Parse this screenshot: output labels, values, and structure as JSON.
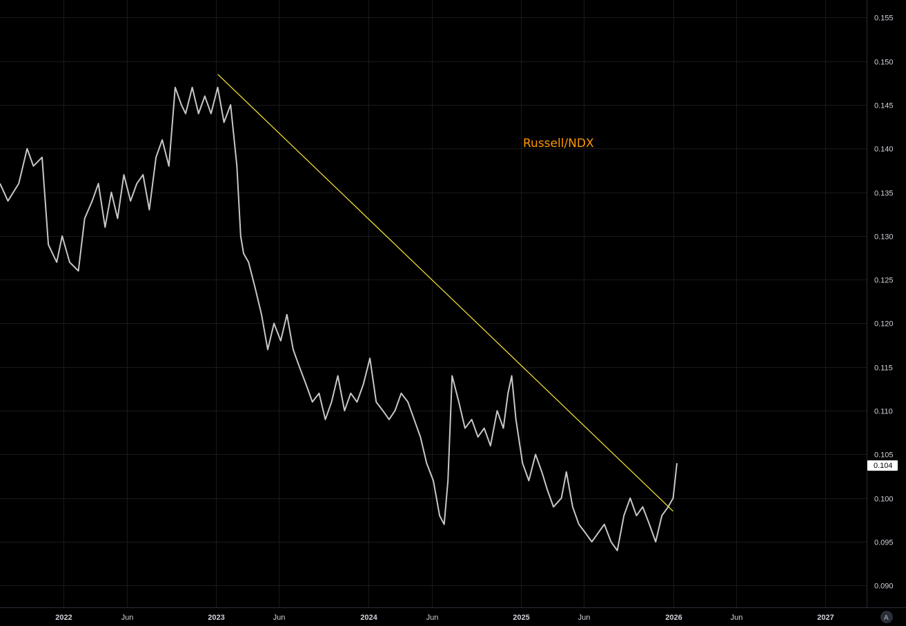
{
  "chart_data": {
    "type": "line",
    "annotation": "Russell/NDX",
    "current_value_label": "0.104",
    "y_ticks": [
      "0.090",
      "0.095",
      "0.100",
      "0.105",
      "0.110",
      "0.115",
      "0.120",
      "0.125",
      "0.130",
      "0.135",
      "0.140",
      "0.145",
      "0.150",
      "0.155"
    ],
    "ylim": [
      0.0875,
      0.157
    ],
    "x_ticks": [
      {
        "label": "2022",
        "date": "2022-01-01",
        "year": true
      },
      {
        "label": "Jun",
        "date": "2022-06-01",
        "year": false
      },
      {
        "label": "2023",
        "date": "2023-01-01",
        "year": true
      },
      {
        "label": "Jun",
        "date": "2023-06-01",
        "year": false
      },
      {
        "label": "2024",
        "date": "2024-01-01",
        "year": true
      },
      {
        "label": "Jun",
        "date": "2024-06-01",
        "year": false
      },
      {
        "label": "2025",
        "date": "2025-01-01",
        "year": true
      },
      {
        "label": "Jun",
        "date": "2025-06-01",
        "year": false
      },
      {
        "label": "2026",
        "date": "2026-01-01",
        "year": true
      },
      {
        "label": "Jun",
        "date": "2026-06-01",
        "year": false
      },
      {
        "label": "2027",
        "date": "2027-01-01",
        "year": true
      }
    ],
    "xlim": [
      "2021-08-01",
      "2027-04-10"
    ],
    "grid": true,
    "series": [
      {
        "color": "#c8c8c8",
        "x": [
          "2021-08-01",
          "2021-08-20",
          "2021-09-15",
          "2021-10-05",
          "2021-10-20",
          "2021-11-10",
          "2021-11-25",
          "2021-12-15",
          "2021-12-28",
          "2022-01-15",
          "2022-02-05",
          "2022-02-20",
          "2022-03-10",
          "2022-03-25",
          "2022-04-10",
          "2022-04-25",
          "2022-05-10",
          "2022-05-25",
          "2022-06-10",
          "2022-06-25",
          "2022-07-10",
          "2022-07-25",
          "2022-08-10",
          "2022-08-25",
          "2022-09-10",
          "2022-09-25",
          "2022-10-10",
          "2022-10-20",
          "2022-11-05",
          "2022-11-20",
          "2022-12-05",
          "2022-12-20",
          "2023-01-05",
          "2023-01-20",
          "2023-02-05",
          "2023-02-20",
          "2023-03-01",
          "2023-03-08",
          "2023-03-20",
          "2023-04-05",
          "2023-04-20",
          "2023-05-05",
          "2023-05-20",
          "2023-06-05",
          "2023-06-20",
          "2023-07-05",
          "2023-07-20",
          "2023-08-05",
          "2023-08-20",
          "2023-09-05",
          "2023-09-20",
          "2023-10-05",
          "2023-10-20",
          "2023-11-05",
          "2023-11-20",
          "2023-12-05",
          "2023-12-20",
          "2024-01-05",
          "2024-01-20",
          "2024-02-05",
          "2024-02-20",
          "2024-03-05",
          "2024-03-20",
          "2024-04-05",
          "2024-04-20",
          "2024-05-05",
          "2024-05-20",
          "2024-06-05",
          "2024-06-20",
          "2024-07-01",
          "2024-07-10",
          "2024-07-20",
          "2024-08-05",
          "2024-08-20",
          "2024-09-05",
          "2024-09-20",
          "2024-10-05",
          "2024-10-20",
          "2024-11-05",
          "2024-11-20",
          "2024-12-01",
          "2024-12-10",
          "2024-12-20",
          "2025-01-05",
          "2025-01-20",
          "2025-02-05",
          "2025-02-20",
          "2025-03-05",
          "2025-03-20",
          "2025-04-08",
          "2025-04-20",
          "2025-05-05",
          "2025-05-20",
          "2025-06-05",
          "2025-06-20",
          "2025-07-05",
          "2025-07-20",
          "2025-08-05",
          "2025-08-20",
          "2025-09-05",
          "2025-09-20",
          "2025-10-05",
          "2025-10-20",
          "2025-11-05",
          "2025-11-20",
          "2025-12-05",
          "2025-12-20",
          "2026-01-01",
          "2026-01-10"
        ],
        "y": [
          0.136,
          0.134,
          0.136,
          0.14,
          0.138,
          0.139,
          0.129,
          0.127,
          0.13,
          0.127,
          0.126,
          0.132,
          0.134,
          0.136,
          0.131,
          0.135,
          0.132,
          0.137,
          0.134,
          0.136,
          0.137,
          0.133,
          0.139,
          0.141,
          0.138,
          0.147,
          0.145,
          0.144,
          0.147,
          0.144,
          0.146,
          0.144,
          0.147,
          0.143,
          0.145,
          0.138,
          0.13,
          0.128,
          0.127,
          0.124,
          0.121,
          0.117,
          0.12,
          0.118,
          0.121,
          0.117,
          0.115,
          0.113,
          0.111,
          0.112,
          0.109,
          0.111,
          0.114,
          0.11,
          0.112,
          0.111,
          0.113,
          0.116,
          0.111,
          0.11,
          0.109,
          0.11,
          0.112,
          0.111,
          0.109,
          0.107,
          0.104,
          0.102,
          0.098,
          0.097,
          0.102,
          0.114,
          0.111,
          0.108,
          0.109,
          0.107,
          0.108,
          0.106,
          0.11,
          0.108,
          0.112,
          0.114,
          0.109,
          0.104,
          0.102,
          0.105,
          0.103,
          0.101,
          0.099,
          0.1,
          0.103,
          0.099,
          0.097,
          0.096,
          0.095,
          0.096,
          0.097,
          0.095,
          0.094,
          0.098,
          0.1,
          0.098,
          0.099,
          0.097,
          0.095,
          0.098,
          0.099,
          0.1,
          0.104
        ]
      }
    ],
    "trendline": {
      "color": "#ffeb3b",
      "x": [
        "2023-01-05",
        "2026-01-01"
      ],
      "y": [
        0.1485,
        0.0985
      ]
    }
  }
}
